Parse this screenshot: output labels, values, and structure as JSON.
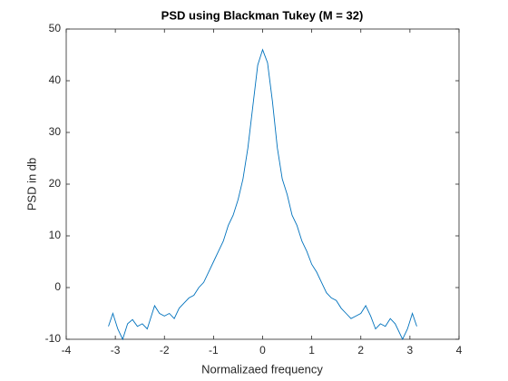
{
  "chart_data": {
    "type": "line",
    "title": "PSD using Blackman Tukey (M = 32)",
    "x_label": "Normalizaed frequency",
    "y_label": "PSD in db",
    "x": [
      -3.14,
      -3.05,
      -2.95,
      -2.85,
      -2.75,
      -2.65,
      -2.55,
      -2.45,
      -2.35,
      -2.2,
      -2.1,
      -2.0,
      -1.9,
      -1.8,
      -1.7,
      -1.6,
      -1.5,
      -1.4,
      -1.3,
      -1.2,
      -1.1,
      -1.0,
      -0.9,
      -0.8,
      -0.7,
      -0.6,
      -0.5,
      -0.4,
      -0.3,
      -0.2,
      -0.1,
      0,
      0.1,
      0.2,
      0.3,
      0.4,
      0.5,
      0.6,
      0.7,
      0.8,
      0.9,
      1.0,
      1.1,
      1.2,
      1.3,
      1.4,
      1.5,
      1.6,
      1.7,
      1.8,
      1.9,
      2.0,
      2.1,
      2.2,
      2.3,
      2.4,
      2.5,
      2.6,
      2.7,
      2.85,
      2.95,
      3.05,
      3.14
    ],
    "series": [
      {
        "name": "PSD",
        "color": "#0072bd",
        "values": [
          -7.5,
          -5,
          -8,
          -10,
          -7,
          -6.2,
          -7.5,
          -7,
          -8,
          -3.5,
          -5,
          -5.5,
          -5,
          -6,
          -4,
          -3,
          -2,
          -1.5,
          0,
          1,
          3,
          5,
          7,
          9,
          12,
          14,
          17,
          21,
          27,
          35,
          43,
          46,
          43.5,
          36,
          27,
          21,
          18,
          14,
          12,
          9,
          7,
          4.5,
          3,
          1,
          -1,
          -2,
          -2.5,
          -4,
          -5,
          -6,
          -5.5,
          -5,
          -3.5,
          -5.5,
          -8,
          -7,
          -7.5,
          -6,
          -7,
          -10,
          -8,
          -5,
          -7.5
        ]
      }
    ],
    "xlim": [
      -4,
      4
    ],
    "ylim": [
      -10,
      50
    ],
    "xticks": [
      -4,
      -3,
      -2,
      -1,
      0,
      1,
      2,
      3,
      4
    ],
    "yticks": [
      -10,
      0,
      10,
      20,
      30,
      40,
      50
    ]
  }
}
